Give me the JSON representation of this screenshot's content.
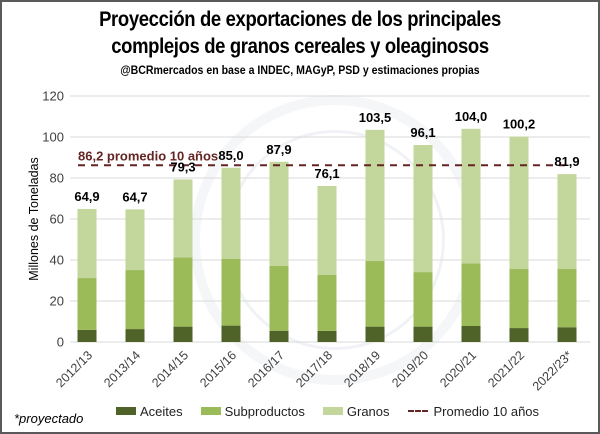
{
  "header": {
    "title_line1": "Proyección de exportaciones de los principales",
    "title_line2": "complejos de granos cereales y oleaginosos",
    "subtitle": "@BCRmercados en base a INDEC, MAGyP, PSD y estimaciones propias"
  },
  "footnote": "*proyectado",
  "legend": {
    "aceites": "Aceites",
    "subproductos": "Subproductos",
    "granos": "Granos",
    "promedio": "Promedio 10 años"
  },
  "colors": {
    "aceites": "#4f6228",
    "subproductos": "#9bbb59",
    "granos": "#c3d69b",
    "promedio": "#632523",
    "grid": "#d9d9d9"
  },
  "chart_data": {
    "type": "bar",
    "stacked": true,
    "title": "Proyección de exportaciones de los principales complejos de granos cereales y oleaginosos",
    "subtitle": "@BCRmercados en base a INDEC, MAGyP, PSD y estimaciones propias",
    "xlabel": "",
    "ylabel": "Millones de Toneladas",
    "ylim": [
      0,
      120
    ],
    "yticks": [
      0,
      20,
      40,
      60,
      80,
      100,
      120
    ],
    "grid": true,
    "legend_position": "bottom",
    "categories": [
      "2012/13",
      "2013/14",
      "2014/15",
      "2015/16",
      "2016/17",
      "2017/18",
      "2018/19",
      "2019/20",
      "2020/21",
      "2021/22",
      "2022/23*"
    ],
    "series": [
      {
        "name": "Aceites",
        "values": [
          5.9,
          6.3,
          7.5,
          8.0,
          5.5,
          5.4,
          7.5,
          7.5,
          7.8,
          6.8,
          7.2
        ]
      },
      {
        "name": "Subproductos",
        "values": [
          25.3,
          28.8,
          33.8,
          32.5,
          31.6,
          27.3,
          32.0,
          26.6,
          30.6,
          28.8,
          28.4
        ]
      },
      {
        "name": "Granos",
        "values": [
          33.7,
          29.6,
          38.0,
          44.5,
          50.8,
          43.4,
          64.0,
          62.0,
          65.6,
          64.6,
          46.3
        ]
      }
    ],
    "totals": [
      64.9,
      64.7,
      79.3,
      85.0,
      87.9,
      76.1,
      103.5,
      96.1,
      104.0,
      100.2,
      81.9
    ],
    "total_labels": [
      "64,9",
      "64,7",
      "79,3",
      "85,0",
      "87,9",
      "76,1",
      "103,5",
      "96,1",
      "104,0",
      "100,2",
      "81,9"
    ],
    "reference_line": {
      "name": "Promedio 10 años",
      "value": 86.2,
      "label": "86,2 promedio 10 años",
      "style": "dashed"
    }
  }
}
